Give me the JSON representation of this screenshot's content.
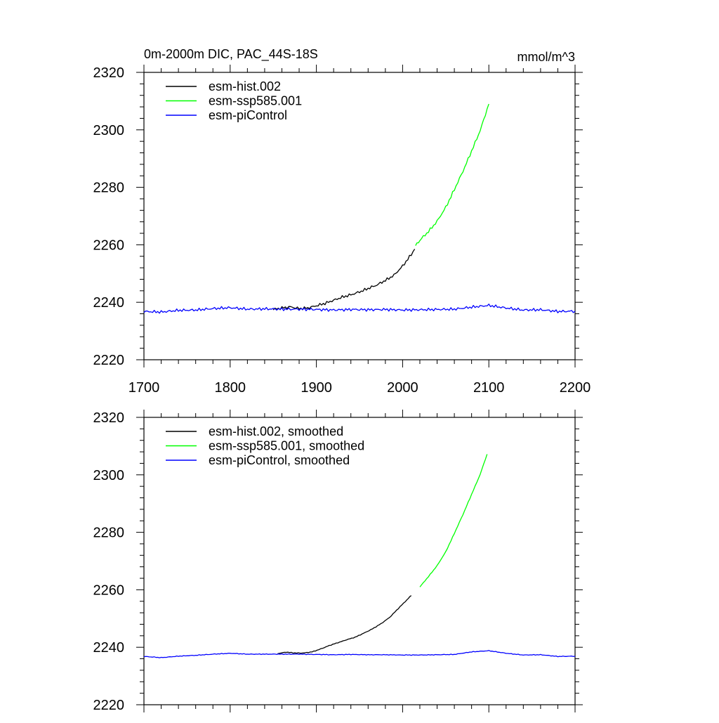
{
  "chart_data": [
    {
      "type": "line",
      "title": "0m-2000m DIC, PAC_44S-18S",
      "units": "mmol/m^3",
      "xlim": [
        1700,
        2200
      ],
      "ylim": [
        2220,
        2320
      ],
      "x_ticks": [
        "1700",
        "1800",
        "1900",
        "2000",
        "2100",
        "2200"
      ],
      "y_ticks": [
        "2220",
        "2240",
        "2260",
        "2280",
        "2300",
        "2320"
      ],
      "show_x_tick_labels": true,
      "legend_position": "top-left",
      "grid": false,
      "series": [
        {
          "name": "esm-hist.002",
          "color": "#000000",
          "x": [
            1850,
            1860,
            1870,
            1880,
            1890,
            1900,
            1910,
            1920,
            1930,
            1940,
            1950,
            1960,
            1970,
            1980,
            1990,
            2000,
            2010,
            2014
          ],
          "y": [
            2237.5,
            2238.0,
            2238.4,
            2237.8,
            2238.0,
            2238.8,
            2239.6,
            2240.7,
            2241.8,
            2242.6,
            2243.6,
            2244.8,
            2246.0,
            2247.6,
            2249.4,
            2252.6,
            2256.6,
            2258.5
          ]
        },
        {
          "name": "esm-ssp585.001",
          "color": "#00ff00",
          "x": [
            2015,
            2020,
            2030,
            2040,
            2050,
            2060,
            2070,
            2080,
            2090,
            2100
          ],
          "y": [
            2259.8,
            2261.6,
            2264.6,
            2268.2,
            2273.0,
            2279.2,
            2285.6,
            2292.6,
            2299.8,
            2309.0
          ]
        },
        {
          "name": "esm-piControl",
          "color": "#0000ff",
          "x": [
            1700,
            1720,
            1740,
            1760,
            1780,
            1800,
            1820,
            1840,
            1860,
            1880,
            1900,
            1920,
            1940,
            1960,
            1980,
            2000,
            2020,
            2040,
            2060,
            2080,
            2100,
            2120,
            2140,
            2160,
            2180,
            2200
          ],
          "y": [
            2236.8,
            2236.6,
            2237.2,
            2237.3,
            2237.8,
            2238.1,
            2237.6,
            2237.7,
            2237.6,
            2237.6,
            2237.5,
            2237.3,
            2237.5,
            2237.4,
            2237.5,
            2237.3,
            2237.4,
            2237.5,
            2237.6,
            2238.3,
            2238.9,
            2238.0,
            2237.3,
            2237.4,
            2236.8,
            2236.9
          ]
        }
      ]
    },
    {
      "type": "line",
      "title": "",
      "units": "",
      "xlim": [
        1700,
        2200
      ],
      "ylim": [
        2220,
        2320
      ],
      "x_ticks": [
        "1700",
        "1800",
        "1900",
        "2000",
        "2100",
        "2200"
      ],
      "y_ticks": [
        "2220",
        "2240",
        "2260",
        "2280",
        "2300",
        "2320"
      ],
      "show_x_tick_labels": false,
      "legend_position": "top-left",
      "grid": false,
      "series": [
        {
          "name": "esm-hist.002, smoothed",
          "color": "#000000",
          "x": [
            1855,
            1865,
            1875,
            1885,
            1895,
            1905,
            1915,
            1925,
            1935,
            1945,
            1955,
            1965,
            1975,
            1985,
            1995,
            2005,
            2010
          ],
          "y": [
            2237.8,
            2238.3,
            2238.0,
            2238.0,
            2238.4,
            2239.4,
            2240.6,
            2241.6,
            2242.6,
            2243.5,
            2244.9,
            2246.4,
            2248.2,
            2250.4,
            2253.5,
            2256.5,
            2258.0
          ]
        },
        {
          "name": "esm-ssp585.001, smoothed",
          "color": "#00ff00",
          "x": [
            2020,
            2030,
            2040,
            2050,
            2060,
            2070,
            2080,
            2090,
            2098
          ],
          "y": [
            2261.0,
            2264.6,
            2268.4,
            2273.2,
            2279.6,
            2286.2,
            2293.2,
            2300.2,
            2307.2
          ]
        },
        {
          "name": "esm-piControl, smoothed",
          "color": "#0000ff",
          "x": [
            1700,
            1720,
            1740,
            1760,
            1780,
            1800,
            1820,
            1840,
            1860,
            1880,
            1900,
            1920,
            1940,
            1960,
            1980,
            2000,
            2020,
            2040,
            2060,
            2080,
            2100,
            2120,
            2140,
            2160,
            2180,
            2200
          ],
          "y": [
            2236.8,
            2236.4,
            2236.9,
            2237.2,
            2237.6,
            2237.9,
            2237.6,
            2237.6,
            2237.6,
            2237.6,
            2237.5,
            2237.4,
            2237.5,
            2237.4,
            2237.4,
            2237.3,
            2237.3,
            2237.4,
            2237.5,
            2238.4,
            2238.8,
            2237.9,
            2237.3,
            2237.4,
            2236.8,
            2236.9
          ]
        }
      ]
    }
  ]
}
